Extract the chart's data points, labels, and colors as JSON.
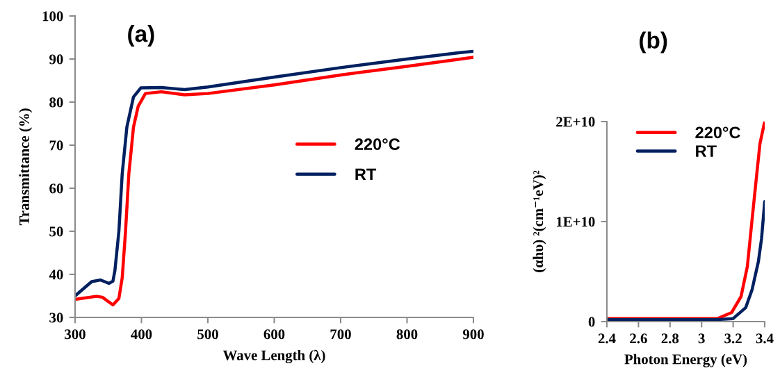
{
  "chart_data": [
    {
      "type": "line",
      "xlabel": "Wave Length (λ)",
      "ylabel": "Transmittance (%)",
      "annotations": [
        "(a)"
      ],
      "xlim": [
        300,
        900
      ],
      "xticks": [
        300,
        400,
        500,
        600,
        700,
        800,
        900
      ],
      "ylim": [
        30,
        100
      ],
      "yticks": [
        30,
        40,
        50,
        60,
        70,
        80,
        90,
        100
      ],
      "grid": false,
      "legend": "right",
      "marker": "none",
      "line_style": "solid",
      "series": [
        {
          "name": "220°C",
          "color": "#ff0000",
          "x": [
            300,
            332,
            341,
            357,
            366,
            371,
            376,
            381,
            388,
            395,
            406,
            430,
            465,
            500,
            600,
            700,
            800,
            900
          ],
          "values": [
            34.2,
            34.9,
            34.7,
            32.9,
            34.4,
            39.2,
            50,
            63.4,
            74.2,
            79,
            82,
            82.4,
            81.7,
            82,
            84,
            86.3,
            88.3,
            90.4
          ]
        },
        {
          "name": "RT",
          "color": "#002060",
          "x": [
            300,
            325,
            338,
            351,
            357,
            360,
            366,
            371,
            378,
            388,
            399,
            430,
            465,
            500,
            600,
            700,
            800,
            880,
            900
          ],
          "values": [
            35,
            38.3,
            38.7,
            37.9,
            38.4,
            40.9,
            50,
            63.4,
            74.2,
            81.2,
            83.3,
            83.4,
            82.9,
            83.5,
            85.8,
            88,
            90,
            91.5,
            91.8
          ]
        }
      ]
    },
    {
      "type": "line",
      "xlabel": "Photon Energy (eV)",
      "ylabel": "(αhυ) ²(cm⁻¹eV)²",
      "annotations": [
        "(b)"
      ],
      "xlim": [
        2.4,
        3.4
      ],
      "xticks": [
        2.4,
        2.6,
        2.8,
        {
          "value": 3.0,
          "label": "3"
        },
        3.2,
        3.4
      ],
      "ylim": [
        0,
        20000000000
      ],
      "yticks": [
        0,
        {
          "value": 10000000000,
          "label": "1E+10"
        },
        {
          "value": 20000000000,
          "label": "2E+10"
        }
      ],
      "grid": false,
      "legend": "top",
      "marker": "none",
      "line_style": "solid",
      "series": [
        {
          "name": "220°C",
          "color": "#ff0000",
          "x": [
            2.4,
            2.8,
            3.1,
            3.19,
            3.25,
            3.29,
            3.32,
            3.35,
            3.37,
            3.4
          ],
          "values": [
            300000000,
            300000000,
            300000000,
            900000000,
            2500000000,
            5500000000,
            10200000000,
            14800000000,
            17800000000,
            20000000000
          ]
        },
        {
          "name": "RT",
          "color": "#002060",
          "x": [
            2.4,
            2.8,
            3.1,
            3.2,
            3.28,
            3.32,
            3.36,
            3.38,
            3.4
          ],
          "values": [
            200000000,
            200000000,
            200000000,
            300000000,
            1400000000,
            3200000000,
            6000000000,
            8300000000,
            12000000000
          ]
        }
      ]
    }
  ]
}
